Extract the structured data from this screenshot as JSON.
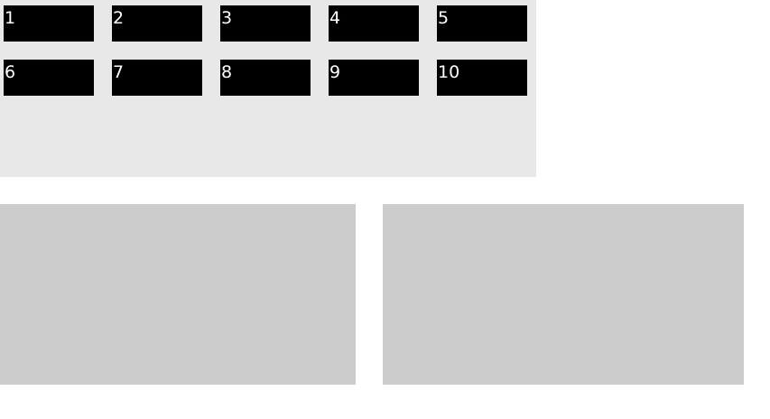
{
  "tiles": [
    {
      "label": "1"
    },
    {
      "label": "2"
    },
    {
      "label": "3"
    },
    {
      "label": "4"
    },
    {
      "label": "5"
    },
    {
      "label": "6"
    },
    {
      "label": "7"
    },
    {
      "label": "8"
    },
    {
      "label": "9"
    },
    {
      "label": "10"
    }
  ],
  "colors": {
    "panel_background": "#e8e8e8",
    "tile_background": "#000000",
    "tile_text": "#ffffff",
    "box_background": "#cccccc",
    "page_background": "#ffffff"
  }
}
